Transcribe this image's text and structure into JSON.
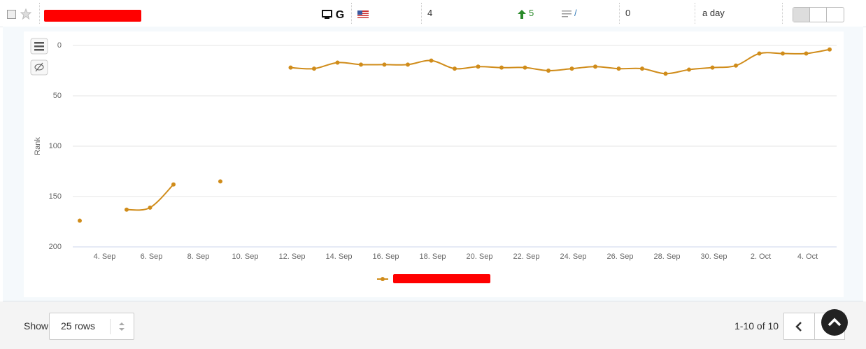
{
  "row": {
    "rank": "4",
    "change": "5",
    "url": "/",
    "volume": "0",
    "frequency": "a day"
  },
  "chart_data": {
    "type": "line",
    "y_label": "Rank",
    "categories": [
      null,
      "4. Sep",
      null,
      "6. Sep",
      null,
      "8. Sep",
      null,
      "10. Sep",
      null,
      "12. Sep",
      null,
      "14. Sep",
      null,
      "16. Sep",
      null,
      "18. Sep",
      null,
      "20. Sep",
      null,
      "22. Sep",
      null,
      "24. Sep",
      null,
      "26. Sep",
      null,
      "28. Sep",
      null,
      "30. Sep",
      null,
      "2. Oct",
      null,
      "4. Oct",
      null
    ],
    "series": [
      {
        "color": "#d08c1a",
        "values": [
          174,
          null,
          163,
          161,
          138,
          null,
          135,
          null,
          null,
          22,
          23,
          17,
          19,
          19,
          19,
          15,
          23,
          21,
          22,
          22,
          25,
          23,
          21,
          23,
          23,
          28,
          24,
          22,
          20,
          8,
          8,
          8,
          4
        ]
      }
    ],
    "ylim": [
      0,
      200
    ],
    "y_inverted": true,
    "yticks": [
      0,
      50,
      100,
      150,
      200
    ],
    "grid": true
  },
  "footer": {
    "show_label": "Show",
    "rows_select": "25 rows",
    "pagination": "1-10 of 10"
  }
}
